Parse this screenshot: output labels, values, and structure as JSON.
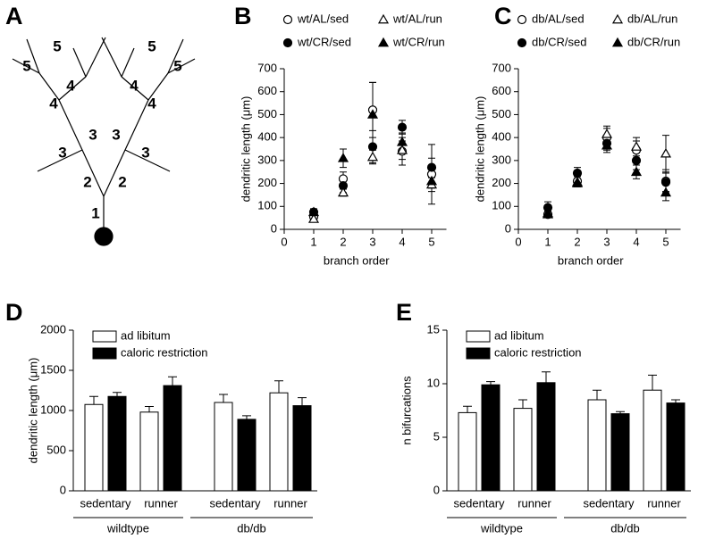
{
  "diagram": {
    "panel": "A",
    "labels": [
      "1",
      "2",
      "2",
      "3",
      "3",
      "3",
      "3",
      "4",
      "4",
      "4",
      "4",
      "5",
      "5",
      "5",
      "5"
    ]
  },
  "chart_data": [
    {
      "panel": "B",
      "type": "scatter",
      "ylabel": "dendritic length (μm)",
      "xlabel": "branch order",
      "x": [
        1,
        2,
        3,
        4,
        5
      ],
      "xlim": [
        0,
        5.5
      ],
      "xticks": [
        0,
        1,
        2,
        3,
        4,
        5
      ],
      "ylim": [
        0,
        700
      ],
      "yticks": [
        0,
        100,
        200,
        300,
        400,
        500,
        600,
        700
      ],
      "series": [
        {
          "name": "wt/AL/sed",
          "marker": "circle",
          "color": "#000000",
          "fill": "#ffffff",
          "values": [
            55,
            220,
            520,
            340,
            240
          ],
          "errors": [
            10,
            30,
            120,
            60,
            130
          ]
        },
        {
          "name": "wt/CR/sed",
          "marker": "circle",
          "color": "#000000",
          "fill": "#000000",
          "values": [
            75,
            190,
            360,
            445,
            270
          ],
          "errors": [
            15,
            30,
            70,
            30,
            40
          ]
        },
        {
          "name": "wt/AL/run",
          "marker": "triangle",
          "color": "#000000",
          "fill": "#ffffff",
          "values": [
            45,
            160,
            315,
            345,
            195
          ],
          "errors": [
            10,
            15,
            30,
            40,
            30
          ]
        },
        {
          "name": "wt/CR/run",
          "marker": "triangle",
          "color": "#000000",
          "fill": "#000000",
          "values": [
            75,
            310,
            500,
            380,
            210
          ],
          "errors": [
            10,
            40,
            140,
            40,
            30
          ]
        }
      ]
    },
    {
      "panel": "C",
      "type": "scatter",
      "ylabel": "dendritic length (μm)",
      "xlabel": "branch order",
      "x": [
        1,
        2,
        3,
        4,
        5
      ],
      "xlim": [
        0,
        5.5
      ],
      "xticks": [
        0,
        1,
        2,
        3,
        4,
        5
      ],
      "ylim": [
        0,
        700
      ],
      "yticks": [
        0,
        100,
        200,
        300,
        400,
        500,
        600,
        700
      ],
      "series": [
        {
          "name": "db/AL/sed",
          "marker": "circle",
          "color": "#000000",
          "fill": "#ffffff",
          "values": [
            65,
            210,
            400,
            345,
            210
          ],
          "errors": [
            10,
            20,
            40,
            40,
            50
          ]
        },
        {
          "name": "db/CR/sed",
          "marker": "circle",
          "color": "#000000",
          "fill": "#000000",
          "values": [
            95,
            245,
            375,
            300,
            205
          ],
          "errors": [
            25,
            25,
            30,
            40,
            40
          ]
        },
        {
          "name": "db/AL/run",
          "marker": "triangle",
          "color": "#000000",
          "fill": "#ffffff",
          "values": [
            70,
            205,
            415,
            360,
            330
          ],
          "errors": [
            10,
            15,
            35,
            40,
            80
          ]
        },
        {
          "name": "db/CR/run",
          "marker": "triangle",
          "color": "#000000",
          "fill": "#000000",
          "values": [
            65,
            200,
            365,
            250,
            160
          ],
          "errors": [
            10,
            15,
            30,
            30,
            35
          ]
        }
      ]
    },
    {
      "panel": "D",
      "type": "bar",
      "ylabel": "dendritic length (μm)",
      "categories": [
        "sedentary",
        "runner",
        "sedentary",
        "runner"
      ],
      "groups": [
        "wildtype",
        "db/db"
      ],
      "ylim": [
        0,
        2000
      ],
      "yticks": [
        0,
        500,
        1000,
        1500,
        2000
      ],
      "series": [
        {
          "name": "ad libitum",
          "color": "#000000",
          "fill": "#ffffff",
          "values": [
            1075,
            980,
            1100,
            1220
          ],
          "errors": [
            100,
            70,
            100,
            150
          ]
        },
        {
          "name": "caloric restriction",
          "color": "#000000",
          "fill": "#000000",
          "values": [
            1175,
            1310,
            890,
            1060
          ],
          "errors": [
            50,
            110,
            45,
            100
          ]
        }
      ]
    },
    {
      "panel": "E",
      "type": "bar",
      "ylabel": "n bifurcations",
      "categories": [
        "sedentary",
        "runner",
        "sedentary",
        "runner"
      ],
      "groups": [
        "wildtype",
        "db/db"
      ],
      "ylim": [
        0,
        15
      ],
      "yticks": [
        0,
        5,
        10,
        15
      ],
      "series": [
        {
          "name": "ad libitum",
          "color": "#000000",
          "fill": "#ffffff",
          "values": [
            7.3,
            7.7,
            8.5,
            9.4
          ],
          "errors": [
            0.6,
            0.8,
            0.9,
            1.4
          ]
        },
        {
          "name": "caloric restriction",
          "color": "#000000",
          "fill": "#000000",
          "values": [
            9.9,
            10.1,
            7.2,
            8.2
          ],
          "errors": [
            0.3,
            1.0,
            0.2,
            0.3
          ]
        }
      ]
    }
  ]
}
